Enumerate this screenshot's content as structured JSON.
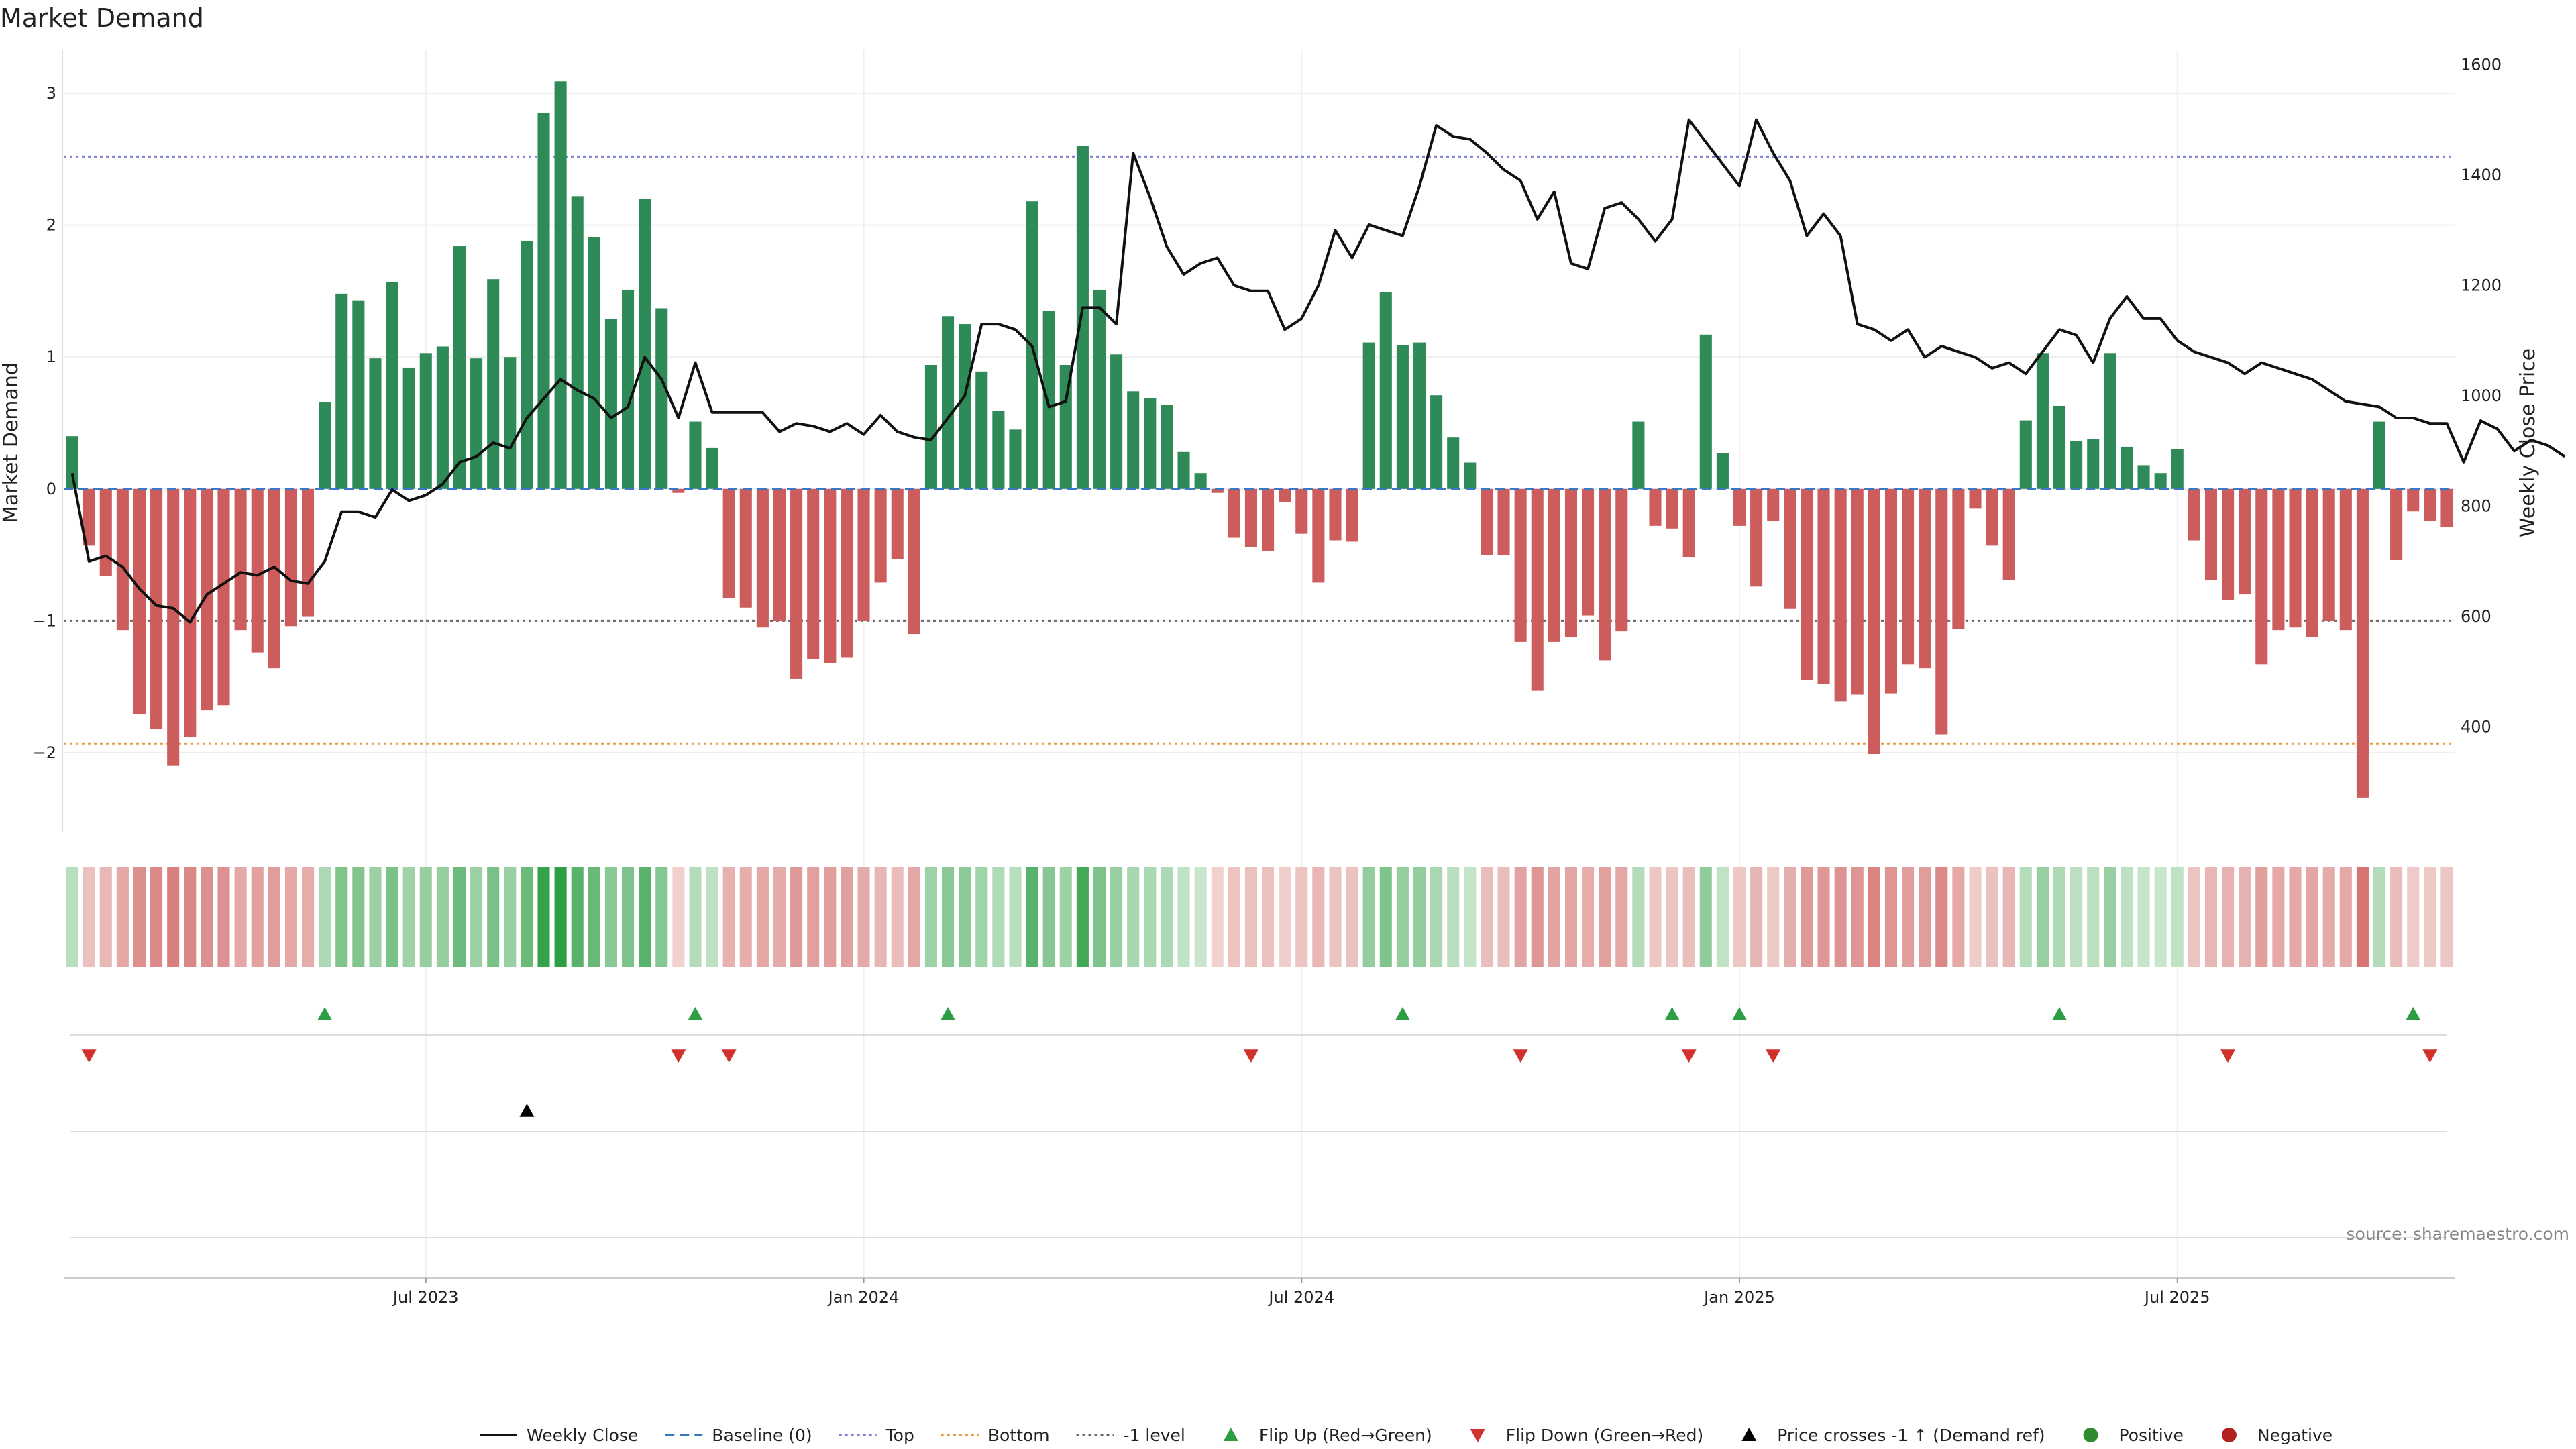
{
  "chart_data": {
    "type": "bar",
    "title": "Market Demand",
    "ylabel_left": "Market Demand",
    "ylabel_right": "Weekly Close Price",
    "ylim_left": [
      -2.6,
      3.3
    ],
    "ylim_right": [
      210,
      1620
    ],
    "left_ticks": [
      "−2",
      "−1",
      "0",
      "1",
      "2",
      "3"
    ],
    "left_tick_values": [
      -2,
      -1,
      0,
      1,
      2,
      3
    ],
    "right_ticks": [
      "400",
      "600",
      "800",
      "1000",
      "1200",
      "1400",
      "1600"
    ],
    "right_tick_values": [
      400,
      600,
      800,
      1000,
      1200,
      1400,
      1600
    ],
    "x_ticks": [
      "Jul 2023",
      "Jan 2024",
      "Jul 2024",
      "Jan 2025",
      "Jul 2025"
    ],
    "x_tick_weeks": [
      21,
      47,
      73,
      99,
      125
    ],
    "reference_lines": [
      {
        "name": "Top",
        "value": 2.52,
        "color": "#7a7fd6"
      },
      {
        "name": "Bottom",
        "value": -1.93,
        "color": "#e89b3c"
      },
      {
        "name": "-1 level",
        "value": -1.0,
        "color": "#666666"
      }
    ],
    "demand": [
      0.4,
      -0.43,
      -0.66,
      -1.07,
      -1.71,
      -1.82,
      -2.1,
      -1.88,
      -1.68,
      -1.64,
      -1.07,
      -1.24,
      -1.36,
      -1.04,
      -0.97,
      0.66,
      1.48,
      1.43,
      0.99,
      1.57,
      0.92,
      1.03,
      1.08,
      1.84,
      0.99,
      1.59,
      1.0,
      1.88,
      2.85,
      3.09,
      2.22,
      1.91,
      1.29,
      1.51,
      2.2,
      1.37,
      -0.03,
      0.51,
      0.31,
      -0.83,
      -0.9,
      -1.05,
      -1.0,
      -1.44,
      -1.29,
      -1.32,
      -1.28,
      -1.0,
      -0.71,
      -0.53,
      -1.1,
      0.94,
      1.31,
      1.25,
      0.89,
      0.59,
      0.45,
      2.18,
      1.35,
      0.94,
      2.6,
      1.51,
      1.02,
      0.74,
      0.69,
      0.64,
      0.28,
      0.12,
      -0.03,
      -0.37,
      -0.44,
      -0.47,
      -0.1,
      -0.34,
      -0.71,
      -0.39,
      -0.4,
      1.11,
      1.49,
      1.09,
      1.11,
      0.71,
      0.39,
      0.2,
      -0.5,
      -0.5,
      -1.16,
      -1.53,
      -1.16,
      -1.12,
      -0.96,
      -1.3,
      -1.08,
      0.51,
      -0.28,
      -0.3,
      -0.52,
      1.17,
      0.27,
      -0.28,
      -0.74,
      -0.24,
      -0.91,
      -1.45,
      -1.48,
      -1.61,
      -1.56,
      -2.01,
      -1.55,
      -1.33,
      -1.36,
      -1.86,
      -1.06,
      -0.15,
      -0.43,
      -0.69,
      0.52,
      1.03,
      0.63,
      0.36,
      0.38,
      1.03,
      0.32,
      0.18,
      0.12,
      0.3,
      -0.39,
      -0.69,
      -0.84,
      -0.8,
      -1.33,
      -1.07,
      -1.05,
      -1.12,
      -1.0,
      -1.07,
      -2.34,
      0.51,
      -0.54,
      -0.17,
      -0.24,
      -0.29
    ],
    "weekly_close": [
      860,
      700,
      710,
      690,
      650,
      620,
      615,
      590,
      640,
      660,
      680,
      675,
      690,
      665,
      660,
      700,
      790,
      790,
      780,
      830,
      810,
      820,
      840,
      880,
      890,
      915,
      905,
      960,
      995,
      1030,
      1010,
      995,
      960,
      980,
      1070,
      1030,
      960,
      1060,
      970,
      970,
      970,
      970,
      935,
      950,
      945,
      935,
      950,
      930,
      965,
      935,
      925,
      920,
      960,
      1000,
      1130,
      1130,
      1120,
      1090,
      980,
      990,
      1160,
      1160,
      1130,
      1440,
      1360,
      1270,
      1220,
      1240,
      1250,
      1200,
      1190,
      1190,
      1120,
      1140,
      1200,
      1300,
      1250,
      1310,
      1300,
      1290,
      1380,
      1490,
      1470,
      1465,
      1440,
      1410,
      1390,
      1320,
      1370,
      1240,
      1230,
      1340,
      1350,
      1320,
      1280,
      1320,
      1500,
      1460,
      1420,
      1380,
      1500,
      1440,
      1390,
      1290,
      1330,
      1290,
      1130,
      1120,
      1100,
      1120,
      1070,
      1090,
      1080,
      1070,
      1050,
      1060,
      1040,
      1080,
      1120,
      1110,
      1060,
      1140,
      1180,
      1140,
      1140,
      1100,
      1080,
      1070,
      1060,
      1040,
      1060,
      1050,
      1040,
      1030,
      1010,
      990,
      985,
      980,
      960,
      960,
      950,
      950,
      880,
      955,
      940,
      900,
      920,
      910,
      890
    ],
    "flip_up_weeks": [
      15,
      37,
      52,
      79,
      95,
      99,
      118,
      139
    ],
    "flip_down_weeks": [
      1,
      36,
      39,
      70,
      86,
      96,
      101,
      128,
      140
    ],
    "cross_weeks": [
      27
    ],
    "legend": [
      {
        "label": "Weekly Close",
        "kind": "line",
        "color": "#111111"
      },
      {
        "label": "Baseline (0)",
        "kind": "dash",
        "color": "#3a78c4"
      },
      {
        "label": "Top",
        "kind": "dot",
        "color": "#7a7fd6"
      },
      {
        "label": "Bottom",
        "kind": "dot",
        "color": "#e89b3c"
      },
      {
        "label": "-1 level",
        "kind": "dot",
        "color": "#666666"
      },
      {
        "label": "Flip Up (Red→Green)",
        "kind": "tri-up",
        "color": "#2e9e45"
      },
      {
        "label": "Flip Down (Green→Red)",
        "kind": "tri-down",
        "color": "#d0312d"
      },
      {
        "label": "Price crosses -1 ↑ (Demand ref)",
        "kind": "tri-up",
        "color": "#000000"
      },
      {
        "label": "Positive",
        "kind": "circle",
        "color": "#2e8b2e"
      },
      {
        "label": "Negative",
        "kind": "circle",
        "color": "#b22222"
      }
    ],
    "source": "source: sharemaestro.com",
    "colors": {
      "positive": "#2e8b57",
      "negative": "#cd5c5c",
      "line": "#111111"
    }
  }
}
